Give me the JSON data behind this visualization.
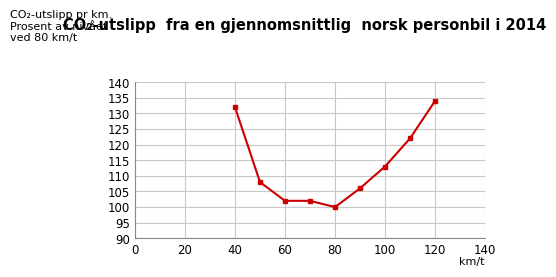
{
  "title": "CO₂-utslipp  fra en gjennomsnittlig  norsk personbil i 2014",
  "ylabel_line1": "CO₂-utslipp pr km.",
  "ylabel_line2": "Prosent av nivået",
  "ylabel_line3": "ved 80 km/t",
  "xlabel": "km/t",
  "x_data": [
    40,
    50,
    60,
    70,
    80,
    90,
    100,
    110,
    120
  ],
  "y_data": [
    132,
    108,
    102,
    102,
    100,
    106,
    113,
    122,
    134
  ],
  "xlim": [
    0,
    140
  ],
  "ylim": [
    90,
    140
  ],
  "xticks": [
    0,
    20,
    40,
    60,
    80,
    100,
    120,
    140
  ],
  "yticks": [
    90,
    95,
    100,
    105,
    110,
    115,
    120,
    125,
    130,
    135,
    140
  ],
  "line_color": "#cc0000",
  "marker_color": "#cc0000",
  "grid_color": "#c8c8c8",
  "bg_color": "#ffffff",
  "title_fontsize": 10.5,
  "label_fontsize": 8,
  "tick_fontsize": 8.5
}
